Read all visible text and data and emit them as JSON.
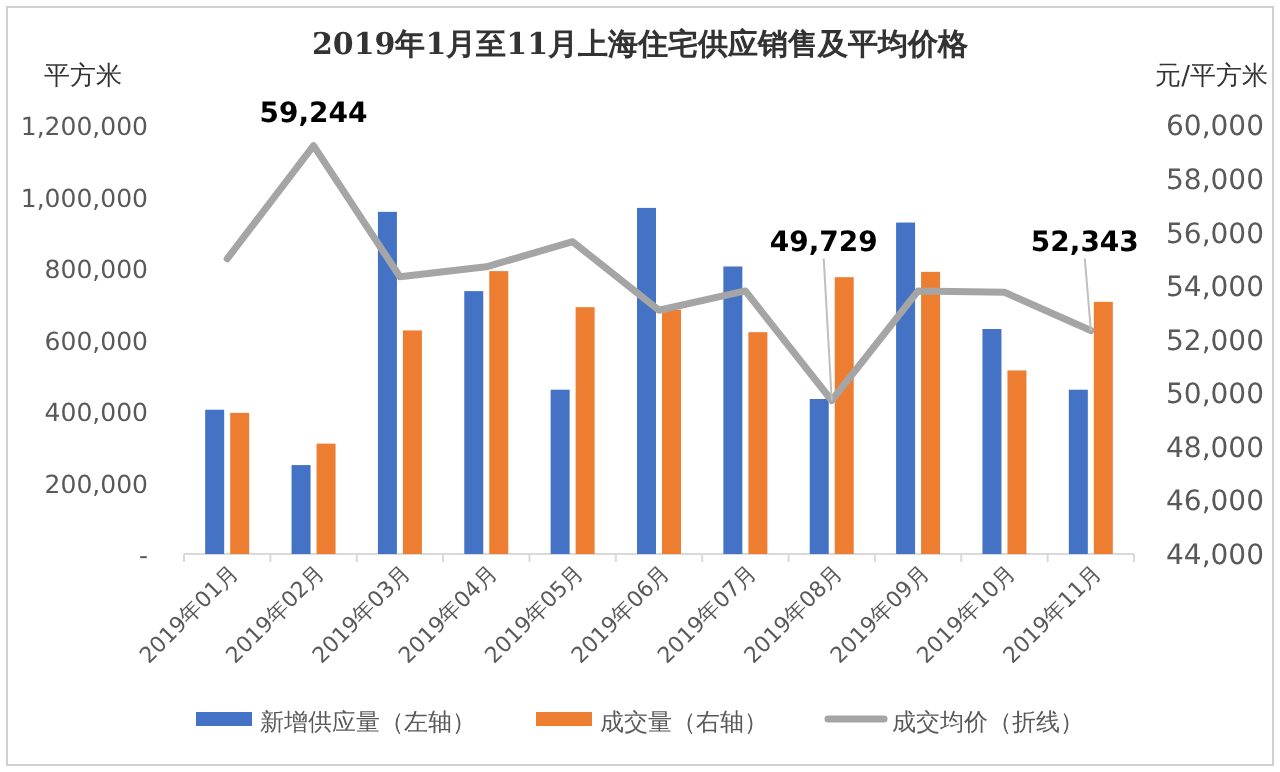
{
  "chart_data": {
    "type": "bar",
    "title": "2019年1月至11月上海住宅供应销售及平均价格",
    "ylabel": "平方米",
    "y2label": "元/平方米",
    "categories": [
      "2019年01月",
      "2019年02月",
      "2019年03月",
      "2019年04月",
      "2019年05月",
      "2019年06月",
      "2019年07月",
      "2019年08月",
      "2019年09月",
      "2019年10月",
      "2019年11月"
    ],
    "series": [
      {
        "name": "新增供应量（左轴）",
        "color": "#4472c4",
        "values": [
          404000,
          249000,
          958000,
          736000,
          460000,
          969000,
          805000,
          434000,
          928000,
          630000,
          460000
        ]
      },
      {
        "name": "成交量（右轴）",
        "color": "#ed7d31",
        "values": [
          395000,
          309000,
          626000,
          792000,
          691000,
          684000,
          621000,
          775000,
          790000,
          514000,
          706000
        ]
      },
      {
        "name": "成交均价（折线）",
        "type": "line",
        "axis": "y2",
        "color": "#a5a5a5",
        "values": [
          55020,
          59244,
          54350,
          54720,
          55660,
          53100,
          53820,
          49729,
          53820,
          53770,
          52343
        ],
        "value_labels": [
          null,
          "59,244",
          null,
          null,
          null,
          null,
          null,
          "49,729",
          null,
          null,
          "52,343"
        ]
      }
    ],
    "ylim": [
      0,
      1200000
    ],
    "yticks": [
      {
        "value": 0,
        "label": "-"
      },
      {
        "value": 200000,
        "label": "200,000"
      },
      {
        "value": 400000,
        "label": "400,000"
      },
      {
        "value": 600000,
        "label": "600,000"
      },
      {
        "value": 800000,
        "label": "800,000"
      },
      {
        "value": 1000000,
        "label": "1,000,000"
      },
      {
        "value": 1200000,
        "label": "1,200,000"
      }
    ],
    "y2lim": [
      44000,
      60000
    ],
    "y2ticks": [
      {
        "value": 44000,
        "label": "44,000"
      },
      {
        "value": 46000,
        "label": "46,000"
      },
      {
        "value": 48000,
        "label": "48,000"
      },
      {
        "value": 50000,
        "label": "50,000"
      },
      {
        "value": 52000,
        "label": "52,000"
      },
      {
        "value": 54000,
        "label": "54,000"
      },
      {
        "value": 56000,
        "label": "56,000"
      },
      {
        "value": 58000,
        "label": "58,000"
      },
      {
        "value": 60000,
        "label": "60,000"
      }
    ],
    "grid": false,
    "legend": "bottom"
  }
}
